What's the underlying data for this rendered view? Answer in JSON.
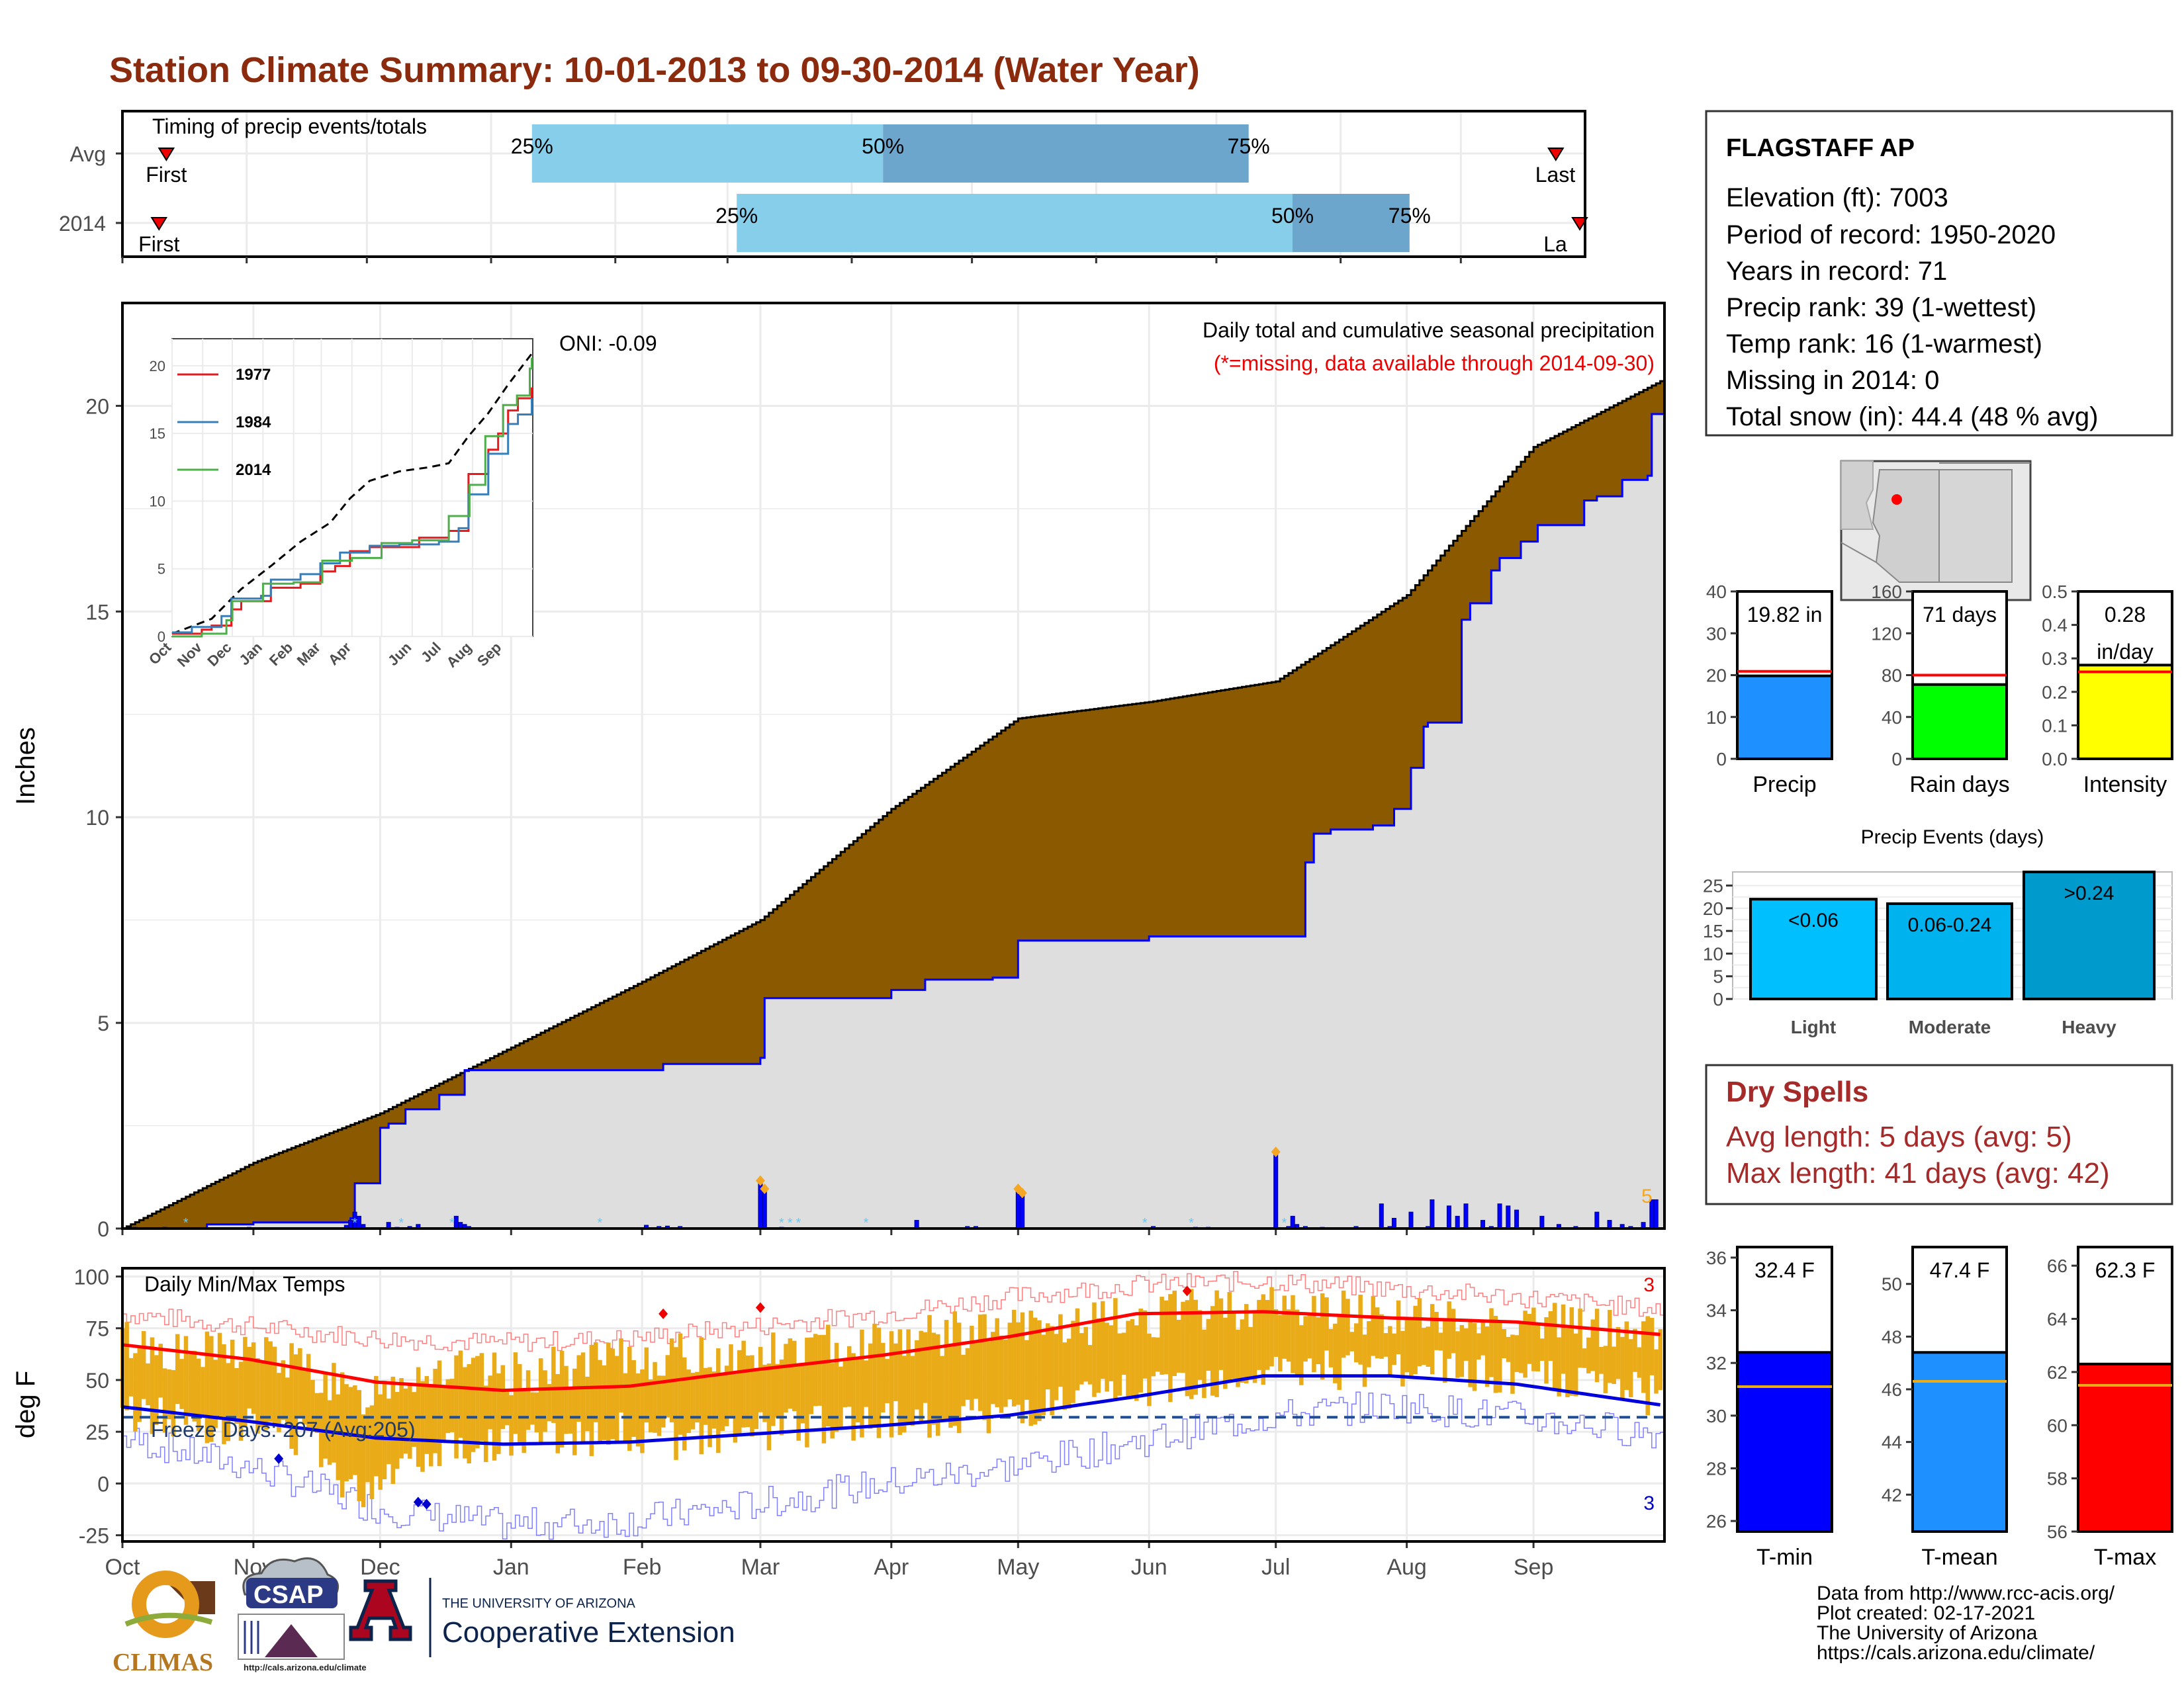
{
  "title": "Station Climate Summary: 10-01-2013 to 09-30-2014 (Water Year)",
  "colors": {
    "title": "#8b2a0c",
    "brown": "#8b5a00",
    "blue": "#0000ff",
    "panel_grid": "#ebebeb",
    "light_bar": "#87ceeb",
    "dark_bar": "#6ca6cd",
    "orange": "#e9ab17",
    "dry_spells": "#a52a2a"
  },
  "station": {
    "name": "FLAGSTAFF AP",
    "lines": [
      "Elevation (ft): 7003",
      "Period of record: 1950-2020",
      "Years in record: 71",
      "Precip rank: 39 (1-wettest)",
      "Temp rank: 16 (1-warmest)",
      "Missing in 2014: 0",
      "Total snow (in): 44.4 (48 % avg)"
    ]
  },
  "timing": {
    "label": "Timing of precip events/totals",
    "rows": [
      {
        "name": "Avg",
        "first": "First",
        "last": "Last",
        "p25": 0.28,
        "p50": 0.52,
        "p75": 0.77,
        "first_pos": 0.03,
        "last_pos": 0.98
      },
      {
        "name": "2014",
        "first": "First",
        "last": "La",
        "p25": 0.42,
        "p50": 0.8,
        "p75": 0.88,
        "first_pos": 0.025,
        "last_pos": 1.0
      }
    ],
    "pct_labels": [
      "25%",
      "50%",
      "75%"
    ]
  },
  "chart_data": [
    {
      "type": "area",
      "title": "Daily total and cumulative seasonal precipitation",
      "subtitle": "(*=missing, data available through 2014-09-30)",
      "ylabel": "Inches",
      "ylim": [
        0,
        22.5
      ],
      "yticks": [
        0,
        5,
        10,
        15,
        20
      ],
      "xticks": [
        "Oct",
        "Nov",
        "Dec",
        "Jan",
        "Feb",
        "Mar",
        "Apr",
        "May",
        "Jun",
        "Jul",
        "Aug",
        "Sep"
      ],
      "oni": "ONI: -0.09",
      "annotation_count": "5",
      "avg_cumulative": {
        "day": [
          0,
          31,
          61,
          92,
          123,
          151,
          182,
          212,
          243,
          273,
          304,
          334,
          364
        ],
        "value": [
          0,
          1.6,
          2.8,
          4.4,
          6.0,
          7.5,
          10.2,
          12.4,
          12.8,
          13.3,
          15.4,
          19.0,
          20.6
        ]
      },
      "observed_cumulative": {
        "day": [
          0,
          20,
          31,
          54,
          55,
          61,
          63,
          67,
          75,
          81,
          92,
          123,
          128,
          151,
          152,
          182,
          190,
          206,
          212,
          243,
          249,
          254,
          273,
          280,
          282,
          286,
          296,
          301,
          305,
          308,
          309,
          317,
          319,
          324,
          326,
          331,
          335,
          346,
          349,
          355,
          361,
          362,
          364
        ],
        "value": [
          0,
          0.1,
          0.15,
          0.25,
          1.1,
          2.45,
          2.55,
          2.9,
          3.25,
          3.85,
          3.85,
          3.85,
          4.0,
          4.15,
          5.6,
          5.8,
          6.05,
          6.1,
          7.0,
          7.1,
          7.1,
          7.1,
          7.1,
          8.9,
          9.6,
          9.7,
          9.8,
          10.2,
          11.2,
          12.2,
          12.3,
          14.8,
          15.2,
          16.0,
          16.3,
          16.7,
          17.1,
          17.7,
          17.8,
          18.2,
          18.3,
          19.8,
          19.8
        ]
      },
      "daily_bars": {
        "day": [
          3,
          10,
          15,
          20,
          28,
          30,
          41,
          48,
          53,
          54,
          55,
          56,
          57,
          63,
          65,
          68,
          70,
          71,
          79,
          80,
          81,
          82,
          124,
          127,
          129,
          132,
          151,
          152,
          156,
          159,
          188,
          200,
          202,
          206,
          212,
          213,
          215,
          224,
          244,
          254,
          257,
          273,
          276,
          277,
          278,
          280,
          284,
          287,
          292,
          298,
          300,
          301,
          305,
          309,
          310,
          314,
          316,
          318,
          322,
          324,
          326,
          328,
          330,
          336,
          340,
          344,
          349,
          352,
          355,
          357,
          360,
          362,
          363
        ],
        "value": [
          0.03,
          0.03,
          0.02,
          0.02,
          0.02,
          0.03,
          0.02,
          0.02,
          0.08,
          0.2,
          0.4,
          0.3,
          0.1,
          0.15,
          0.03,
          0.05,
          0.1,
          0.02,
          0.3,
          0.15,
          0.1,
          0.05,
          0.08,
          0.05,
          0.06,
          0.05,
          1.1,
          0.9,
          0.03,
          0.02,
          0.2,
          0.05,
          0.05,
          0.02,
          0.9,
          0.8,
          0.02,
          0.02,
          0.05,
          0.03,
          0.03,
          1.8,
          0.05,
          0.3,
          0.1,
          0.05,
          0.03,
          0.02,
          0.05,
          0.6,
          0.05,
          0.25,
          0.4,
          0.05,
          0.7,
          0.55,
          0.3,
          0.6,
          0.2,
          0.05,
          0.6,
          0.55,
          0.45,
          0.3,
          0.1,
          0.05,
          0.4,
          0.2,
          0.1,
          0.05,
          0.15,
          0.7,
          0.7
        ]
      }
    },
    {
      "type": "line",
      "title": "",
      "ylim": [
        0,
        22
      ],
      "yticks": [
        0,
        5,
        10,
        15,
        20
      ],
      "xticks": [
        "Oct",
        "Nov",
        "Dec",
        "Jan",
        "Feb",
        "Mar",
        "Apr",
        "May",
        "Jun",
        "Jul",
        "Aug",
        "Sep"
      ],
      "series": [
        {
          "name": "1977",
          "color": "#e41a1c",
          "x": [
            0,
            30,
            40,
            60,
            70,
            100,
            130,
            150,
            165,
            180,
            200,
            250,
            280,
            300,
            320,
            330,
            340,
            350,
            364
          ],
          "y": [
            0.2,
            0.5,
            0.8,
            2.0,
            2.6,
            3.6,
            3.9,
            4.8,
            5.2,
            6.3,
            6.6,
            7.3,
            7.8,
            12.0,
            13.8,
            15.0,
            16.7,
            17.6,
            18.4
          ]
        },
        {
          "name": "1984",
          "color": "#377eb8",
          "x": [
            0,
            20,
            50,
            60,
            90,
            100,
            130,
            150,
            170,
            200,
            230,
            270,
            290,
            300,
            320,
            340,
            350,
            364
          ],
          "y": [
            0.3,
            0.7,
            1.5,
            2.8,
            3.0,
            4.2,
            4.6,
            5.4,
            6.2,
            6.7,
            6.8,
            7.0,
            8.0,
            10.5,
            13.5,
            15.7,
            16.4,
            17.6
          ]
        },
        {
          "name": "2014",
          "color": "#4daf4a",
          "x": [
            0,
            30,
            55,
            61,
            92,
            123,
            152,
            182,
            212,
            243,
            273,
            280,
            301,
            317,
            335,
            349,
            362,
            364
          ],
          "y": [
            0,
            0.2,
            1.2,
            2.6,
            3.9,
            4.0,
            5.6,
            5.8,
            6.9,
            7.1,
            7.1,
            8.9,
            11.2,
            14.8,
            17.1,
            17.8,
            19.8,
            20.6
          ]
        }
      ],
      "avg": {
        "x": [
          0,
          40,
          70,
          100,
          130,
          160,
          180,
          200,
          230,
          260,
          280,
          300,
          320,
          340,
          364
        ],
        "y": [
          0.2,
          1.3,
          3.5,
          5.2,
          7.0,
          8.4,
          10.2,
          11.5,
          12.2,
          12.5,
          12.8,
          14.8,
          16.5,
          18.6,
          20.9
        ]
      },
      "xtick_days": [
        0,
        31,
        61,
        92,
        123,
        151,
        182,
        212,
        243,
        273,
        304,
        334
      ]
    },
    {
      "type": "bar",
      "ylim": [
        0,
        40
      ],
      "yticks": [
        0,
        10,
        20,
        30,
        40
      ],
      "categories": [
        "Precip"
      ],
      "values": [
        19.82
      ],
      "avg": 20.9,
      "value_label": "19.82 in"
    },
    {
      "type": "bar",
      "ylim": [
        0,
        160
      ],
      "yticks": [
        0,
        40,
        80,
        120,
        160
      ],
      "categories": [
        "Rain days"
      ],
      "values": [
        71
      ],
      "avg": 80,
      "value_label": "71 days"
    },
    {
      "type": "bar",
      "ylim": [
        0,
        0.5
      ],
      "yticks": [
        "0.0",
        "0.1",
        "0.2",
        "0.3",
        "0.4",
        "0.5"
      ],
      "categories": [
        "Intensity"
      ],
      "values": [
        0.28
      ],
      "avg": 0.26,
      "value_label": [
        "0.28",
        "in/day"
      ]
    },
    {
      "type": "bar",
      "title": "Precip Events (days)",
      "ylim": [
        0,
        28
      ],
      "yticks": [
        0,
        5,
        10,
        15,
        20,
        25
      ],
      "categories": [
        "Light",
        "Moderate",
        "Heavy"
      ],
      "values": [
        22,
        21,
        28
      ],
      "bar_labels": [
        "<0.06",
        "0.06-0.24",
        ">0.24"
      ]
    },
    {
      "type": "bar",
      "title": "Daily Min/Max Temps",
      "ylabel": "deg F",
      "ylim": [
        -28,
        104
      ],
      "yticks": [
        -25,
        0,
        25,
        50,
        75,
        100
      ],
      "xticks": [
        "Oct",
        "Nov",
        "Dec",
        "Jan",
        "Feb",
        "Mar",
        "Apr",
        "May",
        "Jun",
        "Jul",
        "Aug",
        "Sep"
      ],
      "freeze_label": "Freeze Days: 207 (Avg:205)",
      "freeze_line": 32,
      "count_hi": "3",
      "count_lo": "3",
      "avg_max": {
        "x": [
          0,
          30,
          60,
          90,
          120,
          150,
          180,
          210,
          240,
          270,
          300,
          330,
          364
        ],
        "y": [
          67,
          60,
          49,
          45,
          47,
          55,
          62,
          71,
          82,
          83,
          80,
          78,
          72
        ]
      },
      "avg_min": {
        "x": [
          0,
          30,
          60,
          90,
          120,
          150,
          180,
          210,
          240,
          270,
          300,
          330,
          364
        ],
        "y": [
          37,
          30,
          22,
          19,
          20,
          24,
          28,
          33,
          42,
          52,
          52,
          48,
          38
        ]
      },
      "rec_max": {
        "x": [
          0,
          30,
          60,
          90,
          120,
          150,
          180,
          210,
          240,
          270,
          300,
          330,
          364
        ],
        "y": [
          82,
          76,
          70,
          68,
          70,
          76,
          82,
          90,
          96,
          98,
          94,
          90,
          84
        ]
      },
      "rec_min": {
        "x": [
          0,
          30,
          60,
          90,
          120,
          150,
          180,
          210,
          240,
          270,
          300,
          330,
          364
        ],
        "y": [
          22,
          8,
          -12,
          -20,
          -18,
          -10,
          0,
          8,
          20,
          32,
          38,
          32,
          24
        ]
      },
      "obs_max": {
        "x": [
          0,
          15,
          30,
          45,
          55,
          65,
          75,
          90,
          105,
          120,
          135,
          150,
          165,
          180,
          195,
          210,
          225,
          240,
          255,
          270,
          285,
          300,
          315,
          330,
          345,
          364
        ],
        "y": [
          70,
          62,
          65,
          55,
          40,
          52,
          55,
          52,
          56,
          60,
          62,
          62,
          66,
          70,
          72,
          74,
          76,
          80,
          84,
          86,
          84,
          82,
          78,
          80,
          76,
          72
        ]
      },
      "obs_min": {
        "x": [
          0,
          15,
          30,
          45,
          55,
          65,
          75,
          90,
          105,
          120,
          135,
          150,
          165,
          180,
          195,
          210,
          225,
          240,
          255,
          270,
          285,
          300,
          315,
          330,
          345,
          364
        ],
        "y": [
          35,
          30,
          28,
          22,
          -5,
          10,
          18,
          20,
          22,
          25,
          20,
          25,
          28,
          30,
          32,
          34,
          38,
          45,
          48,
          52,
          55,
          56,
          54,
          52,
          48,
          42
        ]
      }
    },
    {
      "type": "bar",
      "ylim": [
        25.6,
        36.4
      ],
      "yticks": [
        26,
        28,
        30,
        32,
        34,
        36
      ],
      "categories": [
        "T-min"
      ],
      "values": [
        32.4
      ],
      "avg": 31.1,
      "value_label": "32.4 F"
    },
    {
      "type": "bar",
      "ylim": [
        40.6,
        51.4
      ],
      "yticks": [
        42,
        44,
        46,
        48,
        50
      ],
      "categories": [
        "T-mean"
      ],
      "values": [
        47.4
      ],
      "avg": 46.3,
      "value_label": "47.4 F"
    },
    {
      "type": "bar",
      "ylim": [
        56,
        66.7
      ],
      "yticks": [
        56,
        58,
        60,
        62,
        64,
        66
      ],
      "categories": [
        "T-max"
      ],
      "values": [
        62.3
      ],
      "avg": 61.5,
      "value_label": "62.3 F"
    }
  ],
  "dry_spells": {
    "title": "Dry Spells",
    "avg": "Avg length: 5 days (avg: 5)",
    "max": "Max length: 41 days (avg: 42)"
  },
  "credits": [
    "Data from http://www.rcc-acis.org/",
    "Plot created: 02-17-2021",
    "The University of Arizona",
    "https://cals.arizona.edu/climate/"
  ],
  "logos": {
    "climas": "CLIMAS",
    "csap": "CSAP",
    "csap_url": "http://cals.arizona.edu/climate",
    "ua_top": "THE UNIVERSITY OF ARIZONA",
    "ua_main": "Cooperative Extension"
  }
}
